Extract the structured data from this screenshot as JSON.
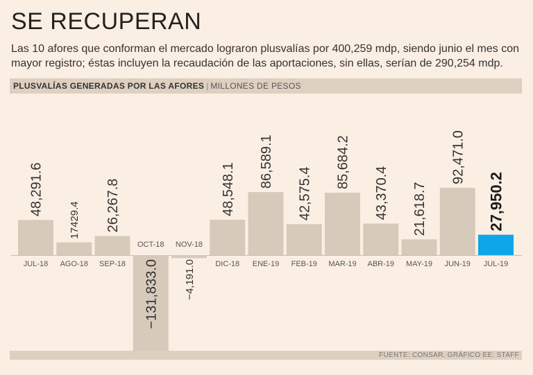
{
  "header": {
    "title": "SE RECUPERAN",
    "subtitle": "Las 10 afores que conforman el mercado lograron plusvalías por 400,259 mdp, siendo junio el mes con mayor registro; éstas incluyen la recaudación de las aportaciones, sin ellas, serían de 290,254 mdp."
  },
  "chart_header": {
    "main": "PLUSVALÍAS GENERADAS POR LAS AFORES",
    "separator": "|",
    "unit": "MILLONES DE PESOS"
  },
  "footer": {
    "source": "FUENTE: CONSAR. GRÁFICO EE: STAFF"
  },
  "colors": {
    "bar": "#d8cabb",
    "highlight": "#0ea5e9",
    "background": "#fbeee2"
  },
  "chart_data": {
    "type": "bar",
    "categories": [
      "JUL-18",
      "AGO-18",
      "SEP-18",
      "OCT-18",
      "NOV-18",
      "DIC-18",
      "ENE-19",
      "FEB-19",
      "MAR-19",
      "ABR-19",
      "MAY-19",
      "JUN-19",
      "JUL-19"
    ],
    "values": [
      48291.6,
      17429.4,
      26267.8,
      -131833.0,
      -4191.0,
      48548.1,
      86589.1,
      42575.4,
      85684.2,
      43370.4,
      21618.7,
      92471.0,
      27950.2
    ],
    "labels": [
      "48,291.6",
      "17429.4",
      "26,267.8",
      "−131,833.0",
      "−4,191.0",
      "48,548.1",
      "86,589.1",
      "42,575.4",
      "85,684.2",
      "43,370.4",
      "21,618.7",
      "92,471.0",
      "27,950.2"
    ],
    "highlight_index": 12,
    "title": "PLUSVALÍAS GENERADAS POR LAS AFORES",
    "xlabel": "",
    "ylabel": "MILLONES DE PESOS",
    "ylim": [
      -131833.0,
      92471.0
    ],
    "grid": false,
    "legend": "none"
  }
}
